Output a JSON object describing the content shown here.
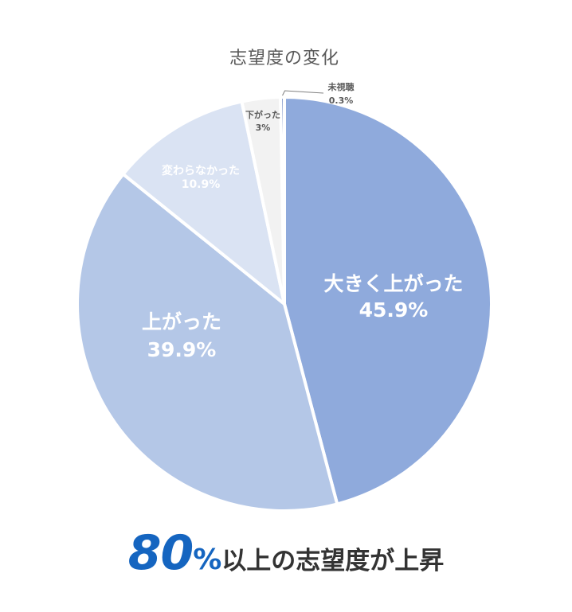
{
  "chart_data": {
    "type": "pie",
    "title": "志望度の変化",
    "start_angle_deg": 0,
    "direction": "clockwise",
    "slices": [
      {
        "label": "大きく上がった",
        "value": 45.9,
        "value_text": "45.9%",
        "color": "#8faadc",
        "label_color": "#ffffff"
      },
      {
        "label": "上がった",
        "value": 39.9,
        "value_text": "39.9%",
        "color": "#b4c7e7",
        "label_color": "#ffffff"
      },
      {
        "label": "変わらなかった",
        "value": 10.9,
        "value_text": "10.9%",
        "color": "#dae3f3",
        "label_color": "#ffffff"
      },
      {
        "label": "下がった",
        "value": 3,
        "value_text": "3%",
        "color": "#f2f2f2",
        "label_color": "#595959"
      },
      {
        "label": "未視聴",
        "value": 0.3,
        "value_text": "0.3%",
        "color": "#7f95c8",
        "label_color": "#595959"
      }
    ]
  },
  "headline": {
    "number": "80",
    "percent": "%",
    "text": "以上の志望度が上昇"
  }
}
